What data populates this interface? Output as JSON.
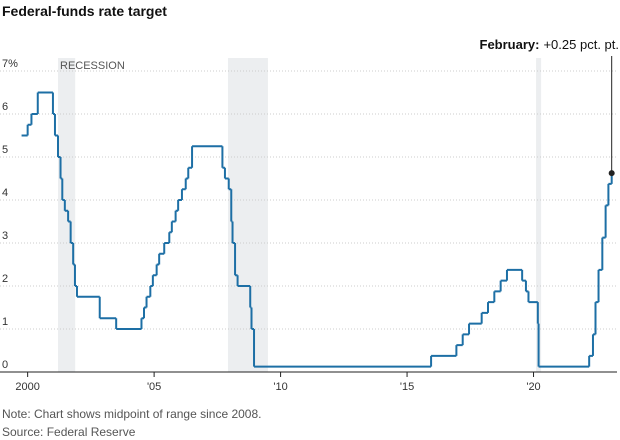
{
  "chart_data": {
    "type": "step",
    "title": "Federal-funds rate target",
    "annotation_label": "February:",
    "annotation_text": "+0.25 pct. pt.",
    "recession_label": "RECESSION",
    "note": "Note: Chart shows midpoint of range since 2008.",
    "source": "Source: Federal Reserve",
    "color": "#1d6fa5",
    "recession_color": "#eceef0",
    "grid": true,
    "recessions": [
      [
        2001.2,
        2001.88
      ],
      [
        2007.92,
        2009.5
      ],
      [
        2020.1,
        2020.3
      ]
    ],
    "x": [
      1999.76,
      2000.0,
      2000.15,
      2000.4,
      2001.0,
      2001.08,
      2001.2,
      2001.3,
      2001.37,
      2001.47,
      2001.6,
      2001.7,
      2001.8,
      2001.87,
      2001.95,
      2002.85,
      2003.5,
      2004.5,
      2004.6,
      2004.7,
      2004.85,
      2004.95,
      2005.1,
      2005.2,
      2005.4,
      2005.6,
      2005.7,
      2005.85,
      2005.95,
      2006.1,
      2006.25,
      2006.35,
      2006.5,
      2007.7,
      2007.8,
      2007.95,
      2008.05,
      2008.1,
      2008.2,
      2008.3,
      2008.8,
      2008.85,
      2008.95,
      2015.95,
      2016.95,
      2017.2,
      2017.45,
      2017.95,
      2018.2,
      2018.45,
      2018.7,
      2018.95,
      2019.55,
      2019.7,
      2019.8,
      2020.17,
      2020.2,
      2022.2,
      2022.35,
      2022.45,
      2022.57,
      2022.72,
      2022.85,
      2022.96,
      2023.09
    ],
    "values": [
      5.5,
      5.75,
      6.0,
      6.5,
      6.0,
      5.5,
      5.0,
      4.5,
      4.0,
      3.75,
      3.5,
      3.0,
      2.5,
      2.0,
      1.75,
      1.25,
      1.0,
      1.25,
      1.5,
      1.75,
      2.0,
      2.25,
      2.5,
      2.75,
      3.0,
      3.25,
      3.5,
      3.75,
      4.0,
      4.25,
      4.5,
      4.75,
      5.25,
      4.75,
      4.5,
      4.25,
      3.5,
      3.0,
      2.25,
      2.0,
      1.5,
      1.0,
      0.125,
      0.375,
      0.625,
      0.875,
      1.125,
      1.375,
      1.625,
      1.875,
      2.125,
      2.375,
      2.125,
      1.875,
      1.625,
      1.125,
      0.125,
      0.375,
      0.875,
      1.625,
      2.375,
      3.125,
      3.875,
      4.375,
      4.625
    ],
    "xlim": [
      1999.5,
      2023.3
    ],
    "xticks": [
      {
        "value": 2000,
        "label": "2000"
      },
      {
        "value": 2005,
        "label": "'05"
      },
      {
        "value": 2010,
        "label": "'10"
      },
      {
        "value": 2015,
        "label": "'15"
      },
      {
        "value": 2020,
        "label": "'20"
      }
    ],
    "ylim": [
      0,
      7
    ],
    "yticks": [
      0,
      1,
      2,
      3,
      4,
      5,
      6,
      {
        "value": 7,
        "label": "7%"
      }
    ]
  }
}
